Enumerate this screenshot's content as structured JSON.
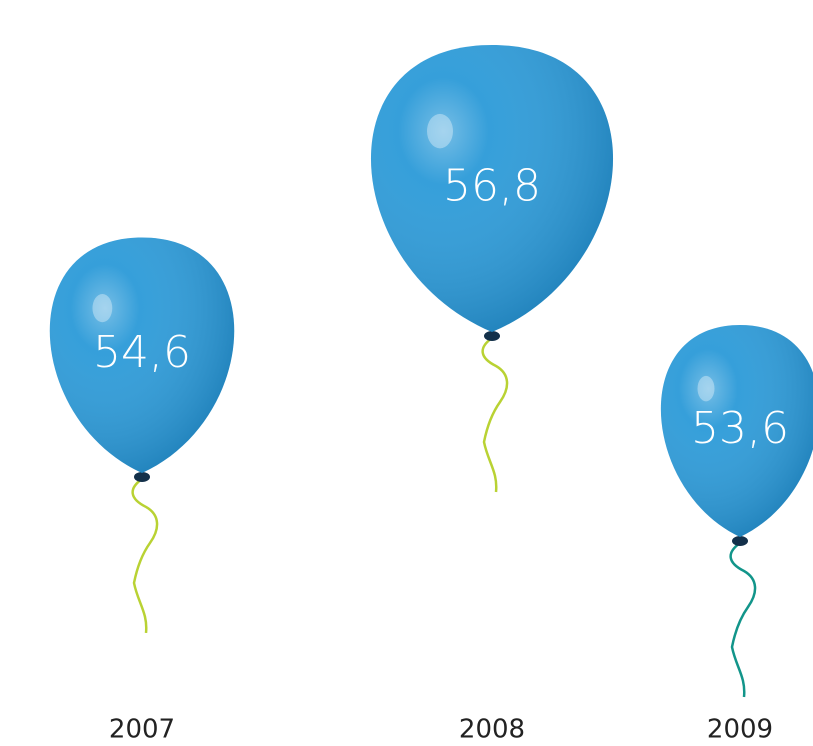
{
  "chart_data": {
    "type": "balloon",
    "categories": [
      "2007",
      "2008",
      "2009"
    ],
    "values": [
      54.6,
      56.8,
      53.6
    ],
    "value_labels": [
      "54,6",
      "56,8",
      "53,6"
    ],
    "color": "#2b9ad8",
    "string_colors": [
      "#b9d233",
      "#b9d233",
      "#12958a"
    ]
  }
}
